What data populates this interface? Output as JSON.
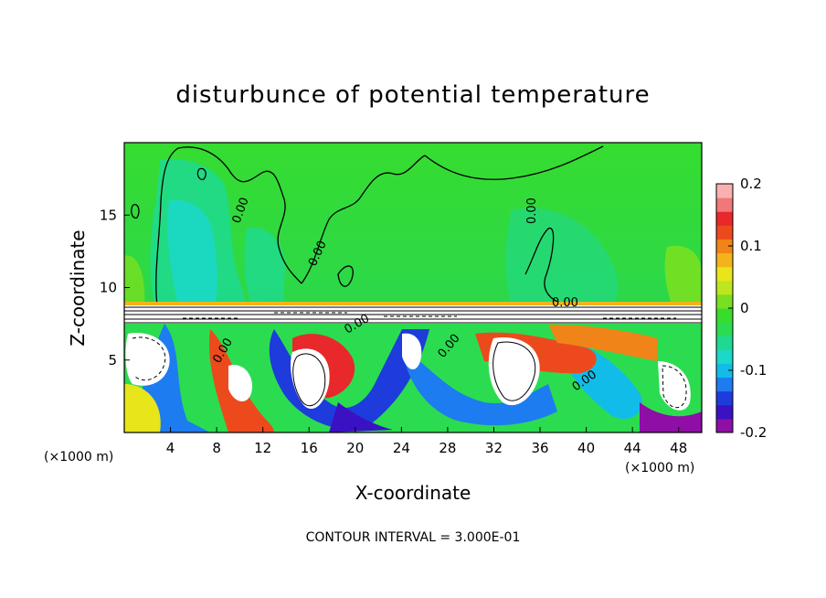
{
  "chart_data": {
    "type": "heatmap",
    "title": "disturbunce of potential temperature",
    "xlabel": "X-coordinate",
    "ylabel": "Z-coordinate",
    "x_unit": "(×1000 m)",
    "x_unit_right": "(×1000 m)",
    "x_ticks": [
      4,
      8,
      12,
      16,
      20,
      24,
      28,
      32,
      36,
      40,
      44,
      48
    ],
    "y_ticks": [
      5,
      10,
      15
    ],
    "xlim": [
      0,
      50
    ],
    "ylim": [
      0,
      20
    ],
    "colorbar": {
      "ticks": [
        "0.2",
        "0.1",
        "0",
        "-0.1",
        "-0.2"
      ],
      "tick_values": [
        0.2,
        0.1,
        0,
        -0.1,
        -0.2
      ],
      "range": [
        -0.2,
        0.2
      ],
      "colors": [
        "#8e0ea6",
        "#3a12c4",
        "#1e3bdc",
        "#1d7cf0",
        "#12bce8",
        "#1bd8c8",
        "#1fd990",
        "#2bdc50",
        "#39dc2a",
        "#78e021",
        "#bde61e",
        "#e8e51a",
        "#f2b41a",
        "#f08418",
        "#ec4a1c",
        "#e8282a",
        "#f07878",
        "#f8b0b0"
      ]
    },
    "contour_labels": [
      "0.00",
      "0.00",
      "0.00",
      "0.00",
      "0.00",
      "0.00",
      "0.00",
      "0.00"
    ],
    "footer": "CONTOUR INTERVAL = 3.000E-01"
  }
}
